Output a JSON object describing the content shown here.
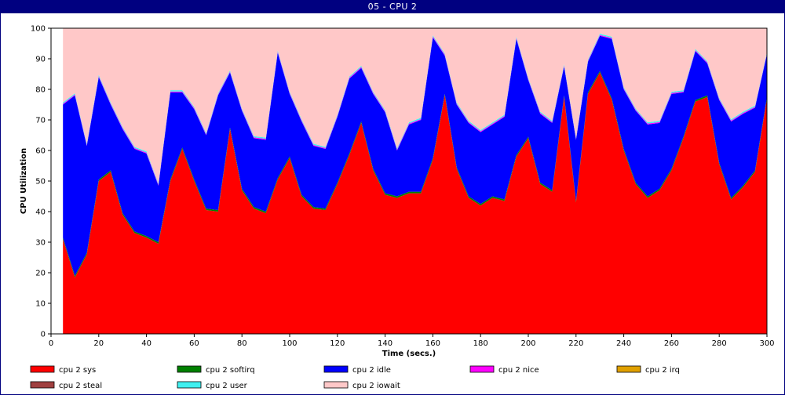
{
  "window": {
    "title": "05 - CPU 2"
  },
  "chart_data": {
    "type": "area",
    "stacked": true,
    "xlabel": "Time (secs.)",
    "ylabel": "CPU Utilization",
    "xlim": [
      0,
      300
    ],
    "ylim": [
      0,
      100
    ],
    "xticks": [
      0,
      20,
      40,
      60,
      80,
      100,
      120,
      140,
      160,
      180,
      200,
      220,
      240,
      260,
      280,
      300
    ],
    "yticks": [
      0,
      10,
      20,
      30,
      40,
      50,
      60,
      70,
      80,
      90,
      100
    ],
    "grid": false,
    "legend": "bottom",
    "x": [
      5,
      10,
      15,
      20,
      25,
      30,
      35,
      40,
      45,
      50,
      55,
      60,
      65,
      70,
      75,
      80,
      85,
      90,
      95,
      100,
      105,
      110,
      115,
      120,
      125,
      130,
      135,
      140,
      145,
      150,
      155,
      160,
      165,
      170,
      175,
      180,
      185,
      190,
      195,
      200,
      205,
      210,
      215,
      220,
      225,
      230,
      235,
      240,
      245,
      250,
      255,
      260,
      265,
      270,
      275,
      280,
      285,
      290,
      295,
      300
    ],
    "series": [
      {
        "name": "cpu 2 sys",
        "color": "#ff0000",
        "values": [
          31,
          18.5,
          26,
          50,
          53,
          39,
          33,
          31.5,
          29.5,
          50,
          60.5,
          50,
          40.5,
          40,
          67,
          47,
          41,
          39.5,
          50.5,
          57.5,
          45,
          41,
          40.5,
          49,
          58.5,
          69,
          53.5,
          45.5,
          44.5,
          46,
          46,
          57,
          78,
          54,
          44.5,
          42,
          44.5,
          43.5,
          58,
          64,
          49,
          46.5,
          77.5,
          43,
          78.5,
          85.5,
          76.5,
          60,
          49,
          44.5,
          47,
          53.5,
          64,
          76,
          77.5,
          55.5,
          44,
          48,
          53,
          77
        ]
      },
      {
        "name": "cpu 2 softirq",
        "color": "#008000",
        "values": [
          0.5,
          0.5,
          0.5,
          0.5,
          0.5,
          0.5,
          0.5,
          0.5,
          0.5,
          0.5,
          0.5,
          0.5,
          0.5,
          0.5,
          0.5,
          0.5,
          0.5,
          0.5,
          0.5,
          0.5,
          0.5,
          0.5,
          0.5,
          0.5,
          0.5,
          0.5,
          0.5,
          0.5,
          0.5,
          0.5,
          0.5,
          0.5,
          0.5,
          0.5,
          0.5,
          0.5,
          0.5,
          0.5,
          0.5,
          0.5,
          0.5,
          0.5,
          0.5,
          0.5,
          0.5,
          0.5,
          0.5,
          0.5,
          0.5,
          0.5,
          0.5,
          0.5,
          0.5,
          0.5,
          0.5,
          0.5,
          0.5,
          0.5,
          0.5,
          0.5
        ]
      },
      {
        "name": "cpu 2 idle",
        "color": "#0000ff",
        "values": [
          43.5,
          59,
          35,
          33.5,
          21.5,
          27.5,
          27,
          27,
          18.5,
          28.5,
          18,
          23,
          24,
          37.5,
          18,
          25.5,
          22.5,
          23.5,
          41,
          20.5,
          24,
          20,
          19.5,
          21.5,
          24.5,
          17.5,
          24.5,
          26.5,
          15,
          22,
          23.5,
          39.5,
          12.5,
          20.5,
          24,
          23.5,
          23.5,
          27,
          38,
          18.5,
          22.5,
          22,
          9.5,
          20,
          10,
          11.5,
          19.5,
          19.5,
          23.5,
          23.5,
          21.5,
          24.5,
          14.5,
          16,
          10.5,
          20.5,
          25,
          23.5,
          20.5,
          14
        ]
      },
      {
        "name": "cpu 2 nice",
        "color": "#ff00ff",
        "values": [
          0.3,
          0.3,
          0.3,
          0.3,
          0.3,
          0.3,
          0.3,
          0.3,
          0.3,
          0.3,
          0.3,
          0.3,
          0.3,
          0.3,
          0.3,
          0.3,
          0.3,
          0.3,
          0.3,
          0.3,
          0.3,
          0.3,
          0.3,
          0.3,
          0.3,
          0.3,
          0.3,
          0.3,
          0.3,
          0.3,
          0.3,
          0.3,
          0.3,
          0.3,
          0.3,
          0.3,
          0.3,
          0.3,
          0.3,
          0.3,
          0.3,
          0.3,
          0.3,
          0.3,
          0.3,
          0.3,
          0.3,
          0.3,
          0.3,
          0.3,
          0.3,
          0.3,
          0.3,
          0.3,
          0.3,
          0.3,
          0.3,
          0.3,
          0.3,
          0.3
        ]
      },
      {
        "name": "cpu 2 irq",
        "color": "#e0a000",
        "values": [
          0,
          0,
          0,
          0,
          0,
          0,
          0,
          0,
          0,
          0,
          0,
          0,
          0,
          0,
          0,
          0,
          0,
          0,
          0,
          0,
          0,
          0,
          0,
          0,
          0,
          0,
          0,
          0,
          0,
          0,
          0,
          0,
          0,
          0,
          0,
          0,
          0,
          0,
          0,
          0,
          0,
          0,
          0,
          0,
          0,
          0,
          0,
          0,
          0,
          0,
          0,
          0,
          0,
          0,
          0,
          0,
          0,
          0,
          0,
          0
        ]
      },
      {
        "name": "cpu 2 steal",
        "color": "#a04040",
        "values": [
          0,
          0,
          0,
          0,
          0,
          0,
          0,
          0,
          0,
          0,
          0,
          0,
          0,
          0,
          0,
          0,
          0,
          0,
          0,
          0,
          0,
          0,
          0,
          0,
          0,
          0,
          0,
          0,
          0,
          0,
          0,
          0,
          0,
          0,
          0,
          0,
          0,
          0,
          0,
          0,
          0,
          0,
          0,
          0,
          0,
          0,
          0,
          0,
          0,
          0,
          0,
          0,
          0,
          0,
          0,
          0,
          0,
          0,
          0,
          0
        ]
      },
      {
        "name": "cpu 2 user",
        "color": "#40f0f0",
        "values": [
          0.4,
          0.4,
          0.4,
          0.4,
          0.4,
          0.4,
          0.4,
          0.4,
          0.4,
          0.4,
          0.4,
          0.4,
          0.4,
          0.4,
          0.4,
          0.4,
          0.4,
          0.4,
          0.4,
          0.4,
          0.4,
          0.4,
          0.4,
          0.4,
          0.4,
          0.4,
          0.4,
          0.4,
          0.4,
          0.4,
          0.4,
          0.4,
          0.4,
          0.4,
          0.4,
          0.4,
          0.4,
          0.4,
          0.4,
          0.4,
          0.4,
          0.4,
          0.4,
          0.4,
          0.4,
          0.4,
          0.4,
          0.4,
          0.4,
          0.4,
          0.4,
          0.4,
          0.4,
          0.4,
          0.4,
          0.4,
          0.4,
          0.4,
          0.4,
          0.4
        ]
      },
      {
        "name": "cpu 2 iowait",
        "color": "#ffc8c8",
        "values": [
          24.3,
          21.3,
          37.8,
          15.3,
          24.3,
          32.3,
          38.8,
          40.3,
          50.8,
          20.3,
          20.8,
          25.8,
          34.3,
          21.3,
          14.3,
          26.3,
          35.3,
          36.3,
          7.3,
          20.8,
          29.8,
          37.8,
          38.8,
          28.6,
          15.8,
          12.3,
          20.8,
          27.3,
          39.3,
          30.8,
          29.3,
          2.3,
          8.3,
          24.3,
          30.3,
          33.3,
          30.8,
          28.3,
          2.8,
          16.3,
          27.3,
          30.3,
          11.8,
          35.8,
          10.3,
          2.3,
          2.8,
          19.3,
          26.3,
          30.8,
          30.3,
          20.8,
          20.3,
          7.3,
          10.8,
          22.8,
          29.8,
          27.3,
          25.3,
          8.3
        ]
      }
    ]
  }
}
